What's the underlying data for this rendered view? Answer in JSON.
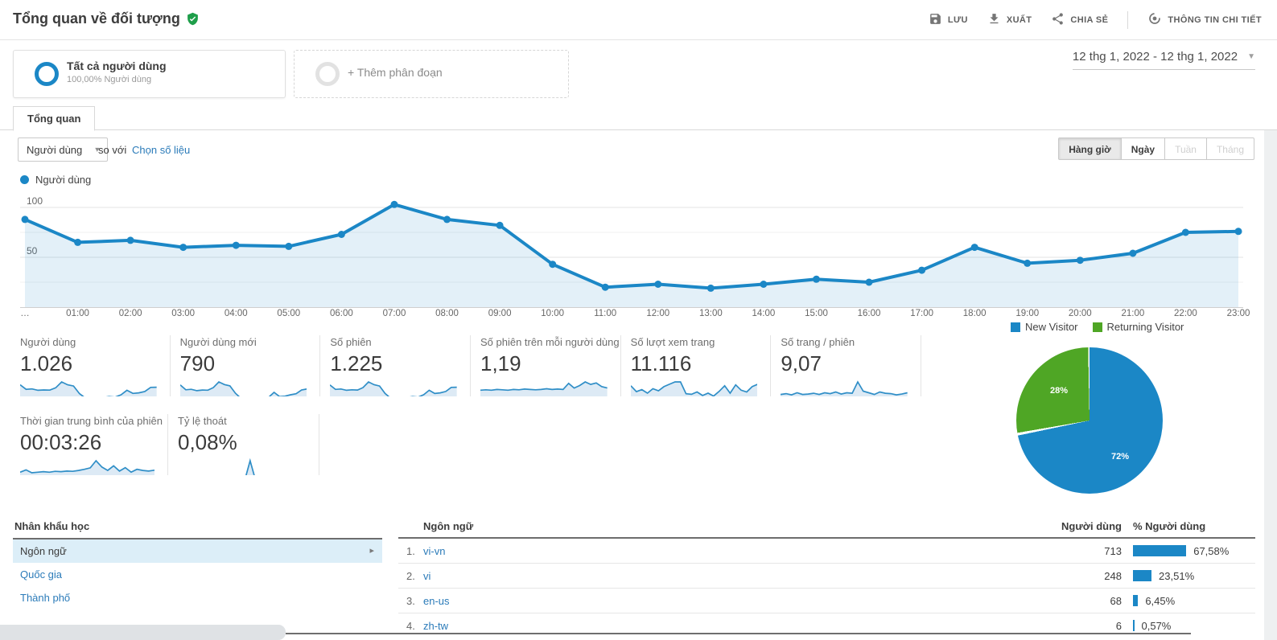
{
  "colors": {
    "accent_blue": "#1b87c6",
    "green": "#4fa625",
    "link_blue": "#2b7bb9",
    "selected_row_bg": "#dceef8"
  },
  "glyphs": {
    "caret_down_small": "▾",
    "caret_down": "▼",
    "chevron_right": "▸"
  },
  "header": {
    "title": "Tổng quan về đối tượng",
    "actions": [
      {
        "label": "LƯU",
        "icon": "save-icon"
      },
      {
        "label": "XUẤT",
        "icon": "export-icon"
      },
      {
        "label": "CHIA SẺ",
        "icon": "share-icon"
      },
      {
        "label": "THÔNG TIN CHI TIẾT",
        "icon": "insights-icon"
      }
    ]
  },
  "segments": {
    "all_users_title": "Tất cả người dùng",
    "all_users_subtitle": "100,00% Người dùng",
    "add_segment": "+ Thêm phân đoạn"
  },
  "date_range": "12 thg 1, 2022 - 12 thg 1, 2022",
  "tab_label": "Tổng quan",
  "controls": {
    "metric_select": "Người dùng",
    "vs": "so với",
    "choose_metric": "Chọn số liệu",
    "granularity": [
      "Hàng giờ",
      "Ngày",
      "Tuần",
      "Tháng"
    ],
    "granularity_active": "Hàng giờ",
    "granularity_disabled": [
      "Tuần",
      "Tháng"
    ]
  },
  "chart_data": [
    {
      "type": "line",
      "legend": "Người dùng",
      "x": [
        "…",
        "01:00",
        "02:00",
        "03:00",
        "04:00",
        "05:00",
        "06:00",
        "07:00",
        "08:00",
        "09:00",
        "10:00",
        "11:00",
        "12:00",
        "13:00",
        "14:00",
        "15:00",
        "16:00",
        "17:00",
        "18:00",
        "19:00",
        "20:00",
        "21:00",
        "22:00",
        "23:00"
      ],
      "series": [
        {
          "name": "Người dùng",
          "values": [
            88,
            65,
            67,
            60,
            62,
            61,
            73,
            103,
            88,
            82,
            43,
            20,
            23,
            19,
            23,
            28,
            25,
            37,
            60,
            44,
            47,
            54,
            75,
            76
          ]
        }
      ],
      "yticks": [
        50,
        100
      ],
      "ylim": [
        0,
        110
      ],
      "grid": true,
      "color": "#1b87c6"
    },
    {
      "type": "pie",
      "legend": [
        "New Visitor",
        "Returning Visitor"
      ],
      "values": [
        72,
        28
      ],
      "pct_labels": [
        "72%",
        "28%"
      ],
      "colors": [
        "#1b87c6",
        "#4fa625"
      ],
      "legend_position": "top"
    },
    {
      "type": "table",
      "columns": [
        "Ngôn ngữ",
        "Người dùng",
        "% Người dùng"
      ],
      "rows": [
        {
          "rank": "1.",
          "language": "vi-vn",
          "users": "713",
          "pct": "67,58%",
          "pct_value": 67.58
        },
        {
          "rank": "2.",
          "language": "vi",
          "users": "248",
          "pct": "23,51%",
          "pct_value": 23.51
        },
        {
          "rank": "3.",
          "language": "en-us",
          "users": "68",
          "pct": "6,45%",
          "pct_value": 6.45
        },
        {
          "rank": "4.",
          "language": "zh-tw",
          "users": "6",
          "pct": "0,57%",
          "pct_value": 0.57
        }
      ]
    }
  ],
  "metrics": {
    "row1": [
      {
        "label": "Người dùng",
        "value": "1.026",
        "spark": [
          88,
          65,
          67,
          60,
          62,
          61,
          73,
          103,
          88,
          82,
          43,
          20,
          23,
          19,
          23,
          28,
          25,
          37,
          60,
          44,
          47,
          54,
          75,
          76
        ]
      },
      {
        "label": "Người dùng mới",
        "value": "790",
        "spark": [
          78,
          56,
          58,
          52,
          55,
          54,
          66,
          92,
          80,
          74,
          40,
          17,
          19,
          15,
          19,
          23,
          21,
          44,
          25,
          27,
          33,
          38,
          55,
          60
        ]
      },
      {
        "label": "Số phiên",
        "value": "1.225",
        "spark": [
          84,
          62,
          64,
          58,
          60,
          59,
          71,
          99,
          85,
          79,
          42,
          19,
          22,
          18,
          22,
          27,
          24,
          36,
          58,
          42,
          45,
          52,
          72,
          73
        ]
      },
      {
        "label": "Số phiên trên mỗi người dùng",
        "value": "1,19",
        "spark": [
          33,
          34,
          33,
          35,
          34,
          33,
          35,
          34,
          36,
          35,
          34,
          35,
          37,
          35,
          36,
          35,
          52,
          39,
          46,
          56,
          49,
          53,
          43,
          39
        ]
      },
      {
        "label": "Số lượt xem trang",
        "value": "11.116",
        "spark": [
          55,
          35,
          42,
          30,
          45,
          38,
          52,
          60,
          68,
          68,
          28,
          26,
          34,
          22,
          30,
          20,
          36,
          55,
          30,
          58,
          40,
          34,
          52,
          60
        ]
      },
      {
        "label": "Số trang / phiên",
        "value": "9,07",
        "spark": [
          18,
          20,
          17,
          22,
          18,
          19,
          21,
          18,
          22,
          20,
          24,
          19,
          22,
          21,
          48,
          26,
          22,
          18,
          24,
          21,
          20,
          17,
          19,
          22
        ]
      }
    ],
    "row2": [
      {
        "label": "Thời gian trung bình của phiên",
        "value": "00:03:26",
        "spark": [
          30,
          38,
          28,
          30,
          32,
          30,
          33,
          32,
          34,
          33,
          36,
          40,
          45,
          70,
          48,
          36,
          52,
          34,
          46,
          30,
          40,
          36,
          34,
          37
        ]
      },
      {
        "label": "Tỷ lệ thoát",
        "value": "0,08%",
        "spark": [
          0,
          0,
          0,
          0,
          0,
          0,
          0,
          0,
          0,
          0,
          0,
          0,
          0,
          1.8,
          0,
          0,
          0,
          0,
          0,
          0,
          0,
          0,
          0,
          0
        ]
      }
    ]
  },
  "demographics": {
    "title": "Nhân khẩu học",
    "items": [
      "Ngôn ngữ",
      "Quốc gia",
      "Thành phố"
    ],
    "selected": "Ngôn ngữ"
  }
}
